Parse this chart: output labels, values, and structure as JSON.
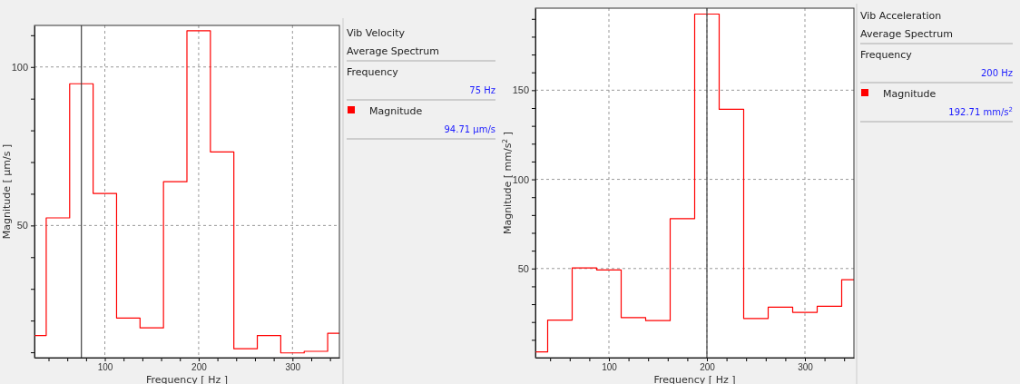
{
  "chart_data": [
    {
      "type": "step",
      "xlabel": "Frequency [ Hz ]",
      "ylabel": "Magnitude [ µm/s ]",
      "x": [
        25,
        50,
        75,
        100,
        125,
        150,
        175,
        200,
        225,
        250,
        275,
        300,
        325,
        350
      ],
      "series": [
        {
          "name": "Magnitude",
          "color": "#ff0000",
          "values": [
            15.3,
            52.4,
            94.7,
            60.1,
            20.8,
            17.7,
            63.8,
            111.4,
            73.2,
            11.1,
            15.3,
            9.8,
            10.3,
            16.0
          ]
        }
      ],
      "xlim": [
        25,
        350
      ],
      "ylim": [
        8.3,
        113.1
      ],
      "xticks": [
        {
          "value": 40,
          "label": null
        },
        {
          "value": 60,
          "label": null
        },
        {
          "value": 80,
          "label": null
        },
        100,
        {
          "value": 120,
          "label": null
        },
        {
          "value": 140,
          "label": null
        },
        {
          "value": 160,
          "label": null
        },
        {
          "value": 180,
          "label": null
        },
        200,
        {
          "value": 220,
          "label": null
        },
        {
          "value": 240,
          "label": null
        },
        {
          "value": 260,
          "label": null
        },
        {
          "value": 280,
          "label": null
        },
        300,
        {
          "value": 320,
          "label": null
        },
        {
          "value": 340,
          "label": null
        }
      ],
      "yticks": [
        {
          "value": 10,
          "label": null
        },
        {
          "value": 20,
          "label": null
        },
        {
          "value": 30,
          "label": null
        },
        {
          "value": 40,
          "label": null
        },
        50,
        {
          "value": 60,
          "label": null
        },
        {
          "value": 70,
          "label": null
        },
        {
          "value": 80,
          "label": null
        },
        {
          "value": 90,
          "label": null
        },
        100,
        {
          "value": 110,
          "label": null
        }
      ],
      "grid": true,
      "legend": "right",
      "ref_lines": [
        {
          "axis": "x",
          "value": 75,
          "color": "#404040"
        }
      ],
      "annotations": [
        "Vib Velocity",
        "Average Spectrum",
        "Frequency",
        "75 Hz",
        "94.71 µm/s"
      ]
    },
    {
      "type": "step",
      "xlabel": "Frequency [ Hz ]",
      "ylabel": "Magnitude [ mm/s$^{2}$ ]",
      "x": [
        25,
        50,
        75,
        100,
        125,
        150,
        175,
        200,
        225,
        250,
        275,
        300,
        325,
        350
      ],
      "series": [
        {
          "name": "Magnitude",
          "color": "#ff0000",
          "values": [
            3.2,
            21.1,
            50.3,
            49.2,
            22.5,
            20.8,
            78.0,
            192.7,
            139.3,
            22.0,
            28.3,
            25.4,
            28.8,
            43.7
          ]
        }
      ],
      "xlim": [
        25,
        350
      ],
      "ylim": [
        0,
        196
      ],
      "xticks": [
        {
          "value": 40,
          "label": null
        },
        {
          "value": 60,
          "label": null
        },
        {
          "value": 80,
          "label": null
        },
        100,
        {
          "value": 120,
          "label": null
        },
        {
          "value": 140,
          "label": null
        },
        {
          "value": 160,
          "label": null
        },
        {
          "value": 180,
          "label": null
        },
        200,
        {
          "value": 220,
          "label": null
        },
        {
          "value": 240,
          "label": null
        },
        {
          "value": 260,
          "label": null
        },
        {
          "value": 280,
          "label": null
        },
        300,
        {
          "value": 320,
          "label": null
        },
        {
          "value": 340,
          "label": null
        }
      ],
      "yticks": [
        {
          "value": 10,
          "label": null
        },
        {
          "value": 20,
          "label": null
        },
        {
          "value": 30,
          "label": null
        },
        {
          "value": 40,
          "label": null
        },
        50,
        {
          "value": 60,
          "label": null
        },
        {
          "value": 70,
          "label": null
        },
        {
          "value": 80,
          "label": null
        },
        {
          "value": 90,
          "label": null
        },
        100,
        {
          "value": 110,
          "label": null
        },
        {
          "value": 120,
          "label": null
        },
        {
          "value": 130,
          "label": null
        },
        {
          "value": 140,
          "label": null
        },
        150,
        {
          "value": 160,
          "label": null
        },
        {
          "value": 170,
          "label": null
        },
        {
          "value": 180,
          "label": null
        },
        {
          "value": 190,
          "label": null
        }
      ],
      "grid": true,
      "legend": "right",
      "ref_lines": [
        {
          "axis": "x",
          "value": 200,
          "color": "#404040"
        }
      ],
      "annotations": [
        "Vib Acceleration",
        "Average Spectrum",
        "Frequency",
        "200 Hz",
        "192.71 mm/s$^{2}$"
      ]
    }
  ]
}
